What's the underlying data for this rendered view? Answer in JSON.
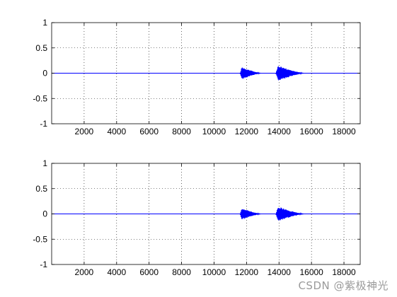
{
  "chart_data": [
    {
      "type": "line",
      "title": "",
      "xlabel": "",
      "ylabel": "",
      "xlim": [
        0,
        19000
      ],
      "ylim": [
        -1,
        1
      ],
      "xticks": [
        2000,
        4000,
        6000,
        8000,
        10000,
        12000,
        14000,
        16000,
        18000
      ],
      "yticks": [
        1,
        0.5,
        0,
        -0.5,
        -1
      ],
      "grid": true,
      "grid_style": "dotted",
      "series": [
        {
          "color": "#0000ff",
          "baseline": 0,
          "bursts": [
            {
              "x_start": 11600,
              "x_end": 12950,
              "peak_amplitude": 0.13
            },
            {
              "x_start": 13800,
              "x_end": 15600,
              "peak_amplitude": 0.16
            }
          ]
        }
      ]
    },
    {
      "type": "line",
      "title": "",
      "xlabel": "",
      "ylabel": "",
      "xlim": [
        0,
        19000
      ],
      "ylim": [
        -1,
        1
      ],
      "xticks": [
        2000,
        4000,
        6000,
        8000,
        10000,
        12000,
        14000,
        16000,
        18000
      ],
      "yticks": [
        1,
        0.5,
        0,
        -0.5,
        -1
      ],
      "grid": true,
      "grid_style": "dotted",
      "series": [
        {
          "color": "#0000ff",
          "baseline": 0,
          "bursts": [
            {
              "x_start": 11600,
              "x_end": 12950,
              "peak_amplitude": 0.12
            },
            {
              "x_start": 13800,
              "x_end": 15600,
              "peak_amplitude": 0.15
            }
          ]
        }
      ]
    }
  ],
  "watermark": "CSDN @紫极神光"
}
